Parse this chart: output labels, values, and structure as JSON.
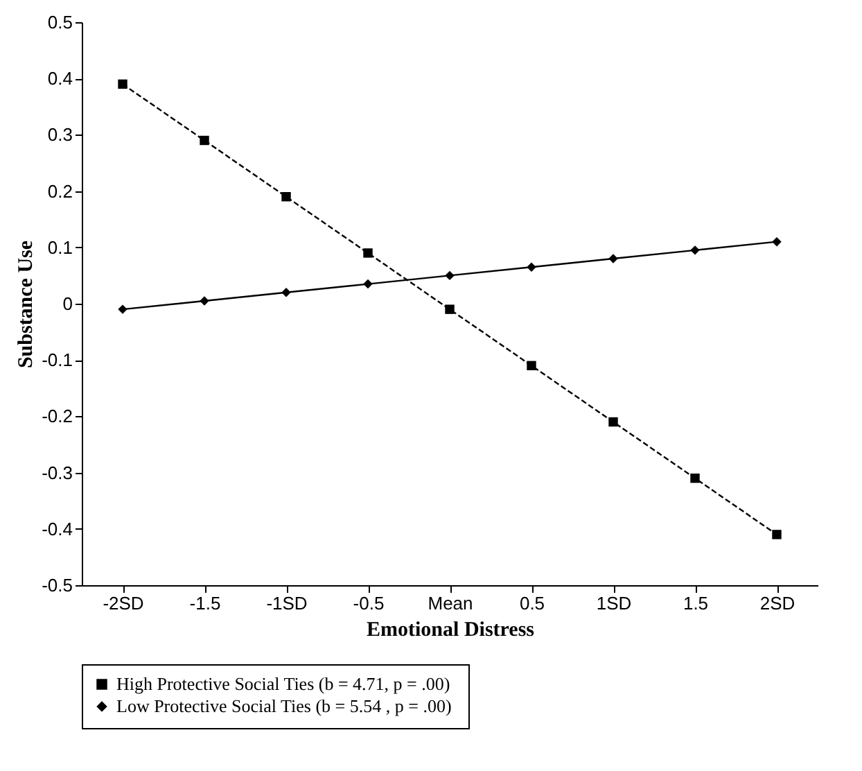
{
  "chart_data": {
    "type": "line",
    "xlabel": "Emotional Distress",
    "ylabel": "Substance Use",
    "categories": [
      "-2SD",
      "-1.5",
      "-1SD",
      "-0.5",
      "Mean",
      "0.5",
      "1SD",
      "1.5",
      "2SD"
    ],
    "series": [
      {
        "name": "High Protective Social Ties  (b = 4.71, p = .00)",
        "color": "#000000",
        "marker": "square",
        "line_style": "dashed",
        "values": [
          0.39,
          0.29,
          0.19,
          0.09,
          -0.01,
          -0.11,
          -0.21,
          -0.31,
          -0.41
        ]
      },
      {
        "name": "Low Protective Social Ties  (b = 5.54 , p = .00)",
        "color": "#000000",
        "marker": "diamond",
        "line_style": "solid",
        "values": [
          -0.01,
          0.005,
          0.02,
          0.035,
          0.05,
          0.065,
          0.08,
          0.095,
          0.11
        ]
      }
    ],
    "ylim": [
      -0.5,
      0.5
    ],
    "yticks": [
      -0.5,
      -0.4,
      -0.3,
      -0.2,
      -0.1,
      0,
      0.1,
      0.2,
      0.3,
      0.4,
      0.5
    ],
    "grid": false,
    "legend": "bottom"
  }
}
